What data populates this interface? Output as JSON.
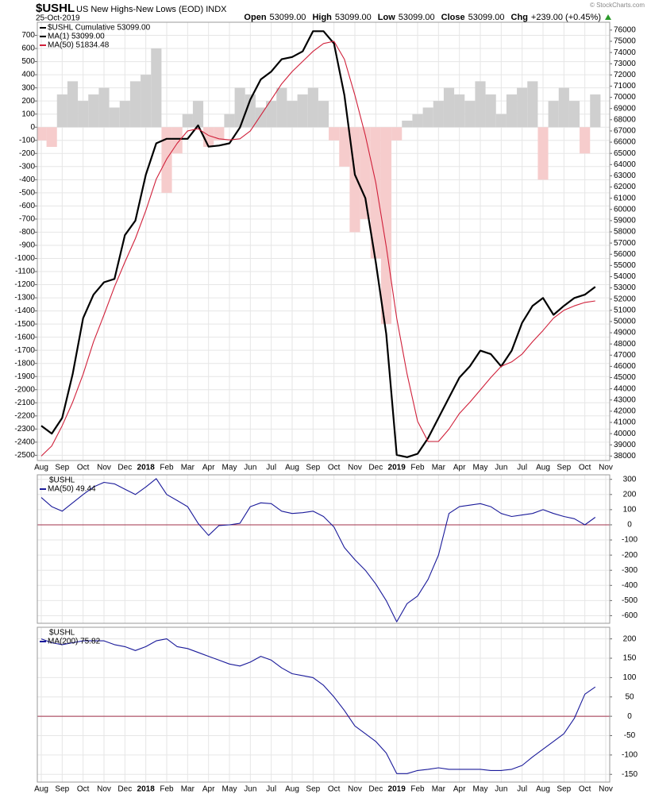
{
  "header": {
    "title": "$USHL",
    "subtitle": "US New Highs-New Lows (EOD) INDX",
    "date": "25-Oct-2019",
    "quote": [
      {
        "label": "Open",
        "value": "53099.00"
      },
      {
        "label": "High",
        "value": "53099.00"
      },
      {
        "label": "Low",
        "value": "53099.00"
      },
      {
        "label": "Close",
        "value": "53099.00"
      },
      {
        "label": "Chg",
        "value": "+239.00 (+0.45%)"
      }
    ],
    "credit": "© StockCharts.com"
  },
  "chart_data": [
    {
      "type": "combo",
      "label": "$USHL Cumulative 53099.00",
      "label_color": "#000000",
      "categories": [
        "Aug",
        null,
        "Sep",
        null,
        "Oct",
        null,
        "Nov",
        null,
        "Dec",
        null,
        "2018",
        null,
        "Feb",
        null,
        "Mar",
        null,
        "Apr",
        null,
        "May",
        null,
        "Jun",
        null,
        "Jul",
        null,
        "Aug",
        null,
        "Sep",
        null,
        "Oct",
        null,
        "Nov",
        null,
        "Dec",
        null,
        "2019",
        null,
        "Feb",
        null,
        "Mar",
        null,
        "Apr",
        null,
        "May",
        null,
        "Jun",
        null,
        "Jul",
        null,
        "Aug",
        null,
        "Sep",
        null,
        "Oct",
        null,
        "Nov"
      ],
      "ylim": [
        -2540,
        800
      ],
      "yticks": [
        700,
        600,
        500,
        400,
        300,
        200,
        100,
        0,
        -100,
        -200,
        -300,
        -400,
        -500,
        -600,
        -700,
        -800,
        -900,
        -1000,
        -1100,
        -1200,
        -1300,
        -1400,
        -1500,
        -1600,
        -1700,
        -1800,
        -1900,
        -2000,
        -2100,
        -2200,
        -2300,
        -2400,
        -2500
      ],
      "y2lim": [
        37600,
        76700
      ],
      "y2ticks": [
        76000,
        75000,
        74000,
        73000,
        72000,
        71000,
        70000,
        69000,
        68000,
        67000,
        66000,
        65000,
        64000,
        63000,
        62000,
        61000,
        60000,
        59000,
        58000,
        57000,
        56000,
        55000,
        54000,
        53000,
        52000,
        51000,
        50000,
        49000,
        48000,
        47000,
        46000,
        45000,
        44000,
        43000,
        42000,
        41000,
        40000,
        39000,
        38000
      ],
      "grid": true,
      "series": [
        {
          "type": "bar",
          "color": "#cfcfcf",
          "negative_color": "#f6cccc",
          "values": [
            -100,
            -150,
            250,
            350,
            200,
            250,
            300,
            150,
            200,
            350,
            400,
            600,
            -500,
            -200,
            100,
            200,
            -150,
            -100,
            100,
            300,
            250,
            150,
            200,
            300,
            200,
            250,
            300,
            200,
            -100,
            -300,
            -800,
            -700,
            -1000,
            -1500,
            -100,
            50,
            100,
            150,
            200,
            300,
            250,
            200,
            350,
            250,
            100,
            250,
            300,
            350,
            -400,
            200,
            300,
            200,
            -200,
            250,
            null
          ]
        },
        {
          "type": "line",
          "name": "MA(1) 53099.00",
          "color": "#000000",
          "width": 2.2,
          "axis": "y2",
          "values": [
            40700,
            40000,
            41400,
            45300,
            50300,
            52400,
            53500,
            53800,
            57700,
            59000,
            63100,
            65900,
            66300,
            66300,
            66300,
            67500,
            65600,
            65700,
            65900,
            67300,
            69800,
            71600,
            72300,
            73400,
            73600,
            74100,
            75900,
            75900,
            74800,
            70200,
            63100,
            61000,
            55300,
            48900,
            38100,
            37900,
            38200,
            39600,
            41400,
            43200,
            45000,
            46000,
            47400,
            47100,
            46000,
            47400,
            49900,
            51400,
            52100,
            50600,
            51400,
            52100,
            52400,
            53099,
            null
          ]
        },
        {
          "type": "line",
          "name": "MA(50) 51834.48",
          "color": "#d0203a",
          "width": 1.1,
          "axis": "y2",
          "values": [
            38000,
            38900,
            40700,
            42800,
            45300,
            48200,
            50600,
            53100,
            55300,
            57400,
            59900,
            62700,
            64500,
            65900,
            67000,
            67200,
            66600,
            66300,
            66200,
            66300,
            67000,
            68400,
            69800,
            71200,
            72300,
            73200,
            74100,
            74800,
            75000,
            73400,
            70200,
            66600,
            62400,
            56700,
            50300,
            45300,
            41100,
            39300,
            39300,
            40400,
            41800,
            42800,
            43900,
            45000,
            46000,
            46400,
            47100,
            48200,
            49200,
            50300,
            51000,
            51400,
            51700,
            51834.48,
            null
          ]
        }
      ]
    },
    {
      "type": "line",
      "label": "$USHL",
      "yaxis_side": "right",
      "zero_line_color": "#a0304a",
      "ylim": [
        -650,
        330
      ],
      "yticks": [
        300,
        200,
        100,
        0,
        -100,
        -200,
        -300,
        -400,
        -500,
        -600
      ],
      "grid": true,
      "series": [
        {
          "name": "MA(50) 49.44",
          "color": "#1a1a9a",
          "width": 1.1,
          "values": [
            180,
            120,
            90,
            145,
            200,
            250,
            280,
            270,
            235,
            200,
            250,
            305,
            200,
            160,
            120,
            10,
            -70,
            -5,
            0,
            10,
            120,
            145,
            140,
            90,
            75,
            80,
            90,
            55,
            -15,
            -150,
            -230,
            -300,
            -390,
            -500,
            -640,
            -520,
            -470,
            -360,
            -200,
            75,
            120,
            130,
            140,
            120,
            75,
            55,
            65,
            75,
            100,
            75,
            55,
            40,
            0,
            49.44,
            null
          ]
        }
      ]
    },
    {
      "type": "line",
      "label": "$USHL",
      "yaxis_side": "right",
      "zero_line_color": "#a0304a",
      "categories": [
        "Aug",
        null,
        "Sep",
        null,
        "Oct",
        null,
        "Nov",
        null,
        "Dec",
        null,
        "2018",
        null,
        "Feb",
        null,
        "Mar",
        null,
        "Apr",
        null,
        "May",
        null,
        "Jun",
        null,
        "Jul",
        null,
        "Aug",
        null,
        "Sep",
        null,
        "Oct",
        null,
        "Nov",
        null,
        "Dec",
        null,
        "2019",
        null,
        "Feb",
        null,
        "Mar",
        null,
        "Apr",
        null,
        "May",
        null,
        "Jun",
        null,
        "Jul",
        null,
        "Aug",
        null,
        "Sep",
        null,
        "Oct",
        null,
        "Nov"
      ],
      "ylim": [
        -170,
        230
      ],
      "yticks": [
        200,
        150,
        100,
        50,
        0,
        -50,
        -100,
        -150
      ],
      "grid": true,
      "series": [
        {
          "name": "MA(200) 75.82",
          "color": "#1a1a9a",
          "width": 1.1,
          "values": [
            200,
            190,
            185,
            190,
            195,
            195,
            195,
            185,
            180,
            170,
            180,
            195,
            200,
            180,
            175,
            165,
            155,
            145,
            135,
            130,
            140,
            155,
            145,
            125,
            110,
            105,
            100,
            80,
            50,
            15,
            -25,
            -45,
            -65,
            -95,
            -148,
            -148,
            -140,
            -137,
            -133,
            -137,
            -137,
            -137,
            -137,
            -140,
            -140,
            -137,
            -127,
            -105,
            -85,
            -65,
            -45,
            -5,
            57,
            75.82,
            null
          ]
        }
      ]
    }
  ]
}
